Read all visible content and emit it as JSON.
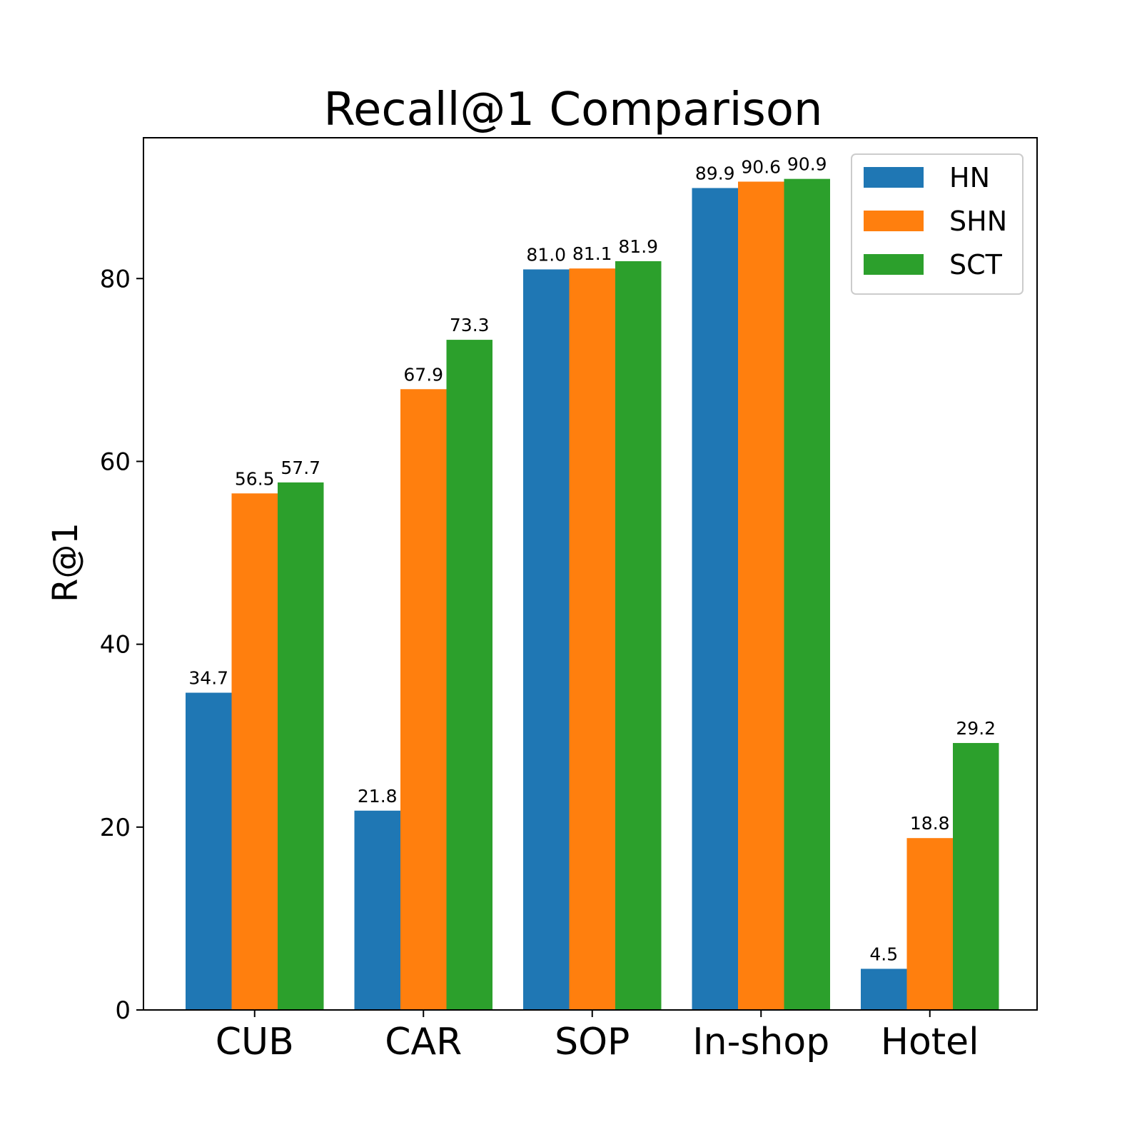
{
  "chart_data": {
    "type": "bar",
    "title": "Recall@1 Comparison",
    "xlabel": "",
    "ylabel": "R@1",
    "categories": [
      "CUB",
      "CAR",
      "SOP",
      "In-shop",
      "Hotel"
    ],
    "series": [
      {
        "name": "HN",
        "color": "#1f77b4",
        "values": [
          34.7,
          21.8,
          81.0,
          89.9,
          4.5
        ],
        "labels": [
          "34.7",
          "21.8",
          "81.0",
          "89.9",
          "4.5"
        ]
      },
      {
        "name": "SHN",
        "color": "#ff7f0e",
        "values": [
          56.5,
          67.9,
          81.1,
          90.6,
          18.8
        ],
        "labels": [
          "56.5",
          "67.9",
          "81.1",
          "90.6",
          "18.8"
        ]
      },
      {
        "name": "SCT",
        "color": "#2ca02c",
        "values": [
          57.7,
          73.3,
          81.9,
          90.9,
          29.2
        ],
        "labels": [
          "57.7",
          "73.3",
          "81.9",
          "90.9",
          "29.2"
        ]
      }
    ],
    "ylim": [
      0,
      95.4
    ],
    "yticks": [
      0,
      20,
      40,
      60,
      80
    ],
    "grid": false,
    "legend_position": "top-right"
  }
}
